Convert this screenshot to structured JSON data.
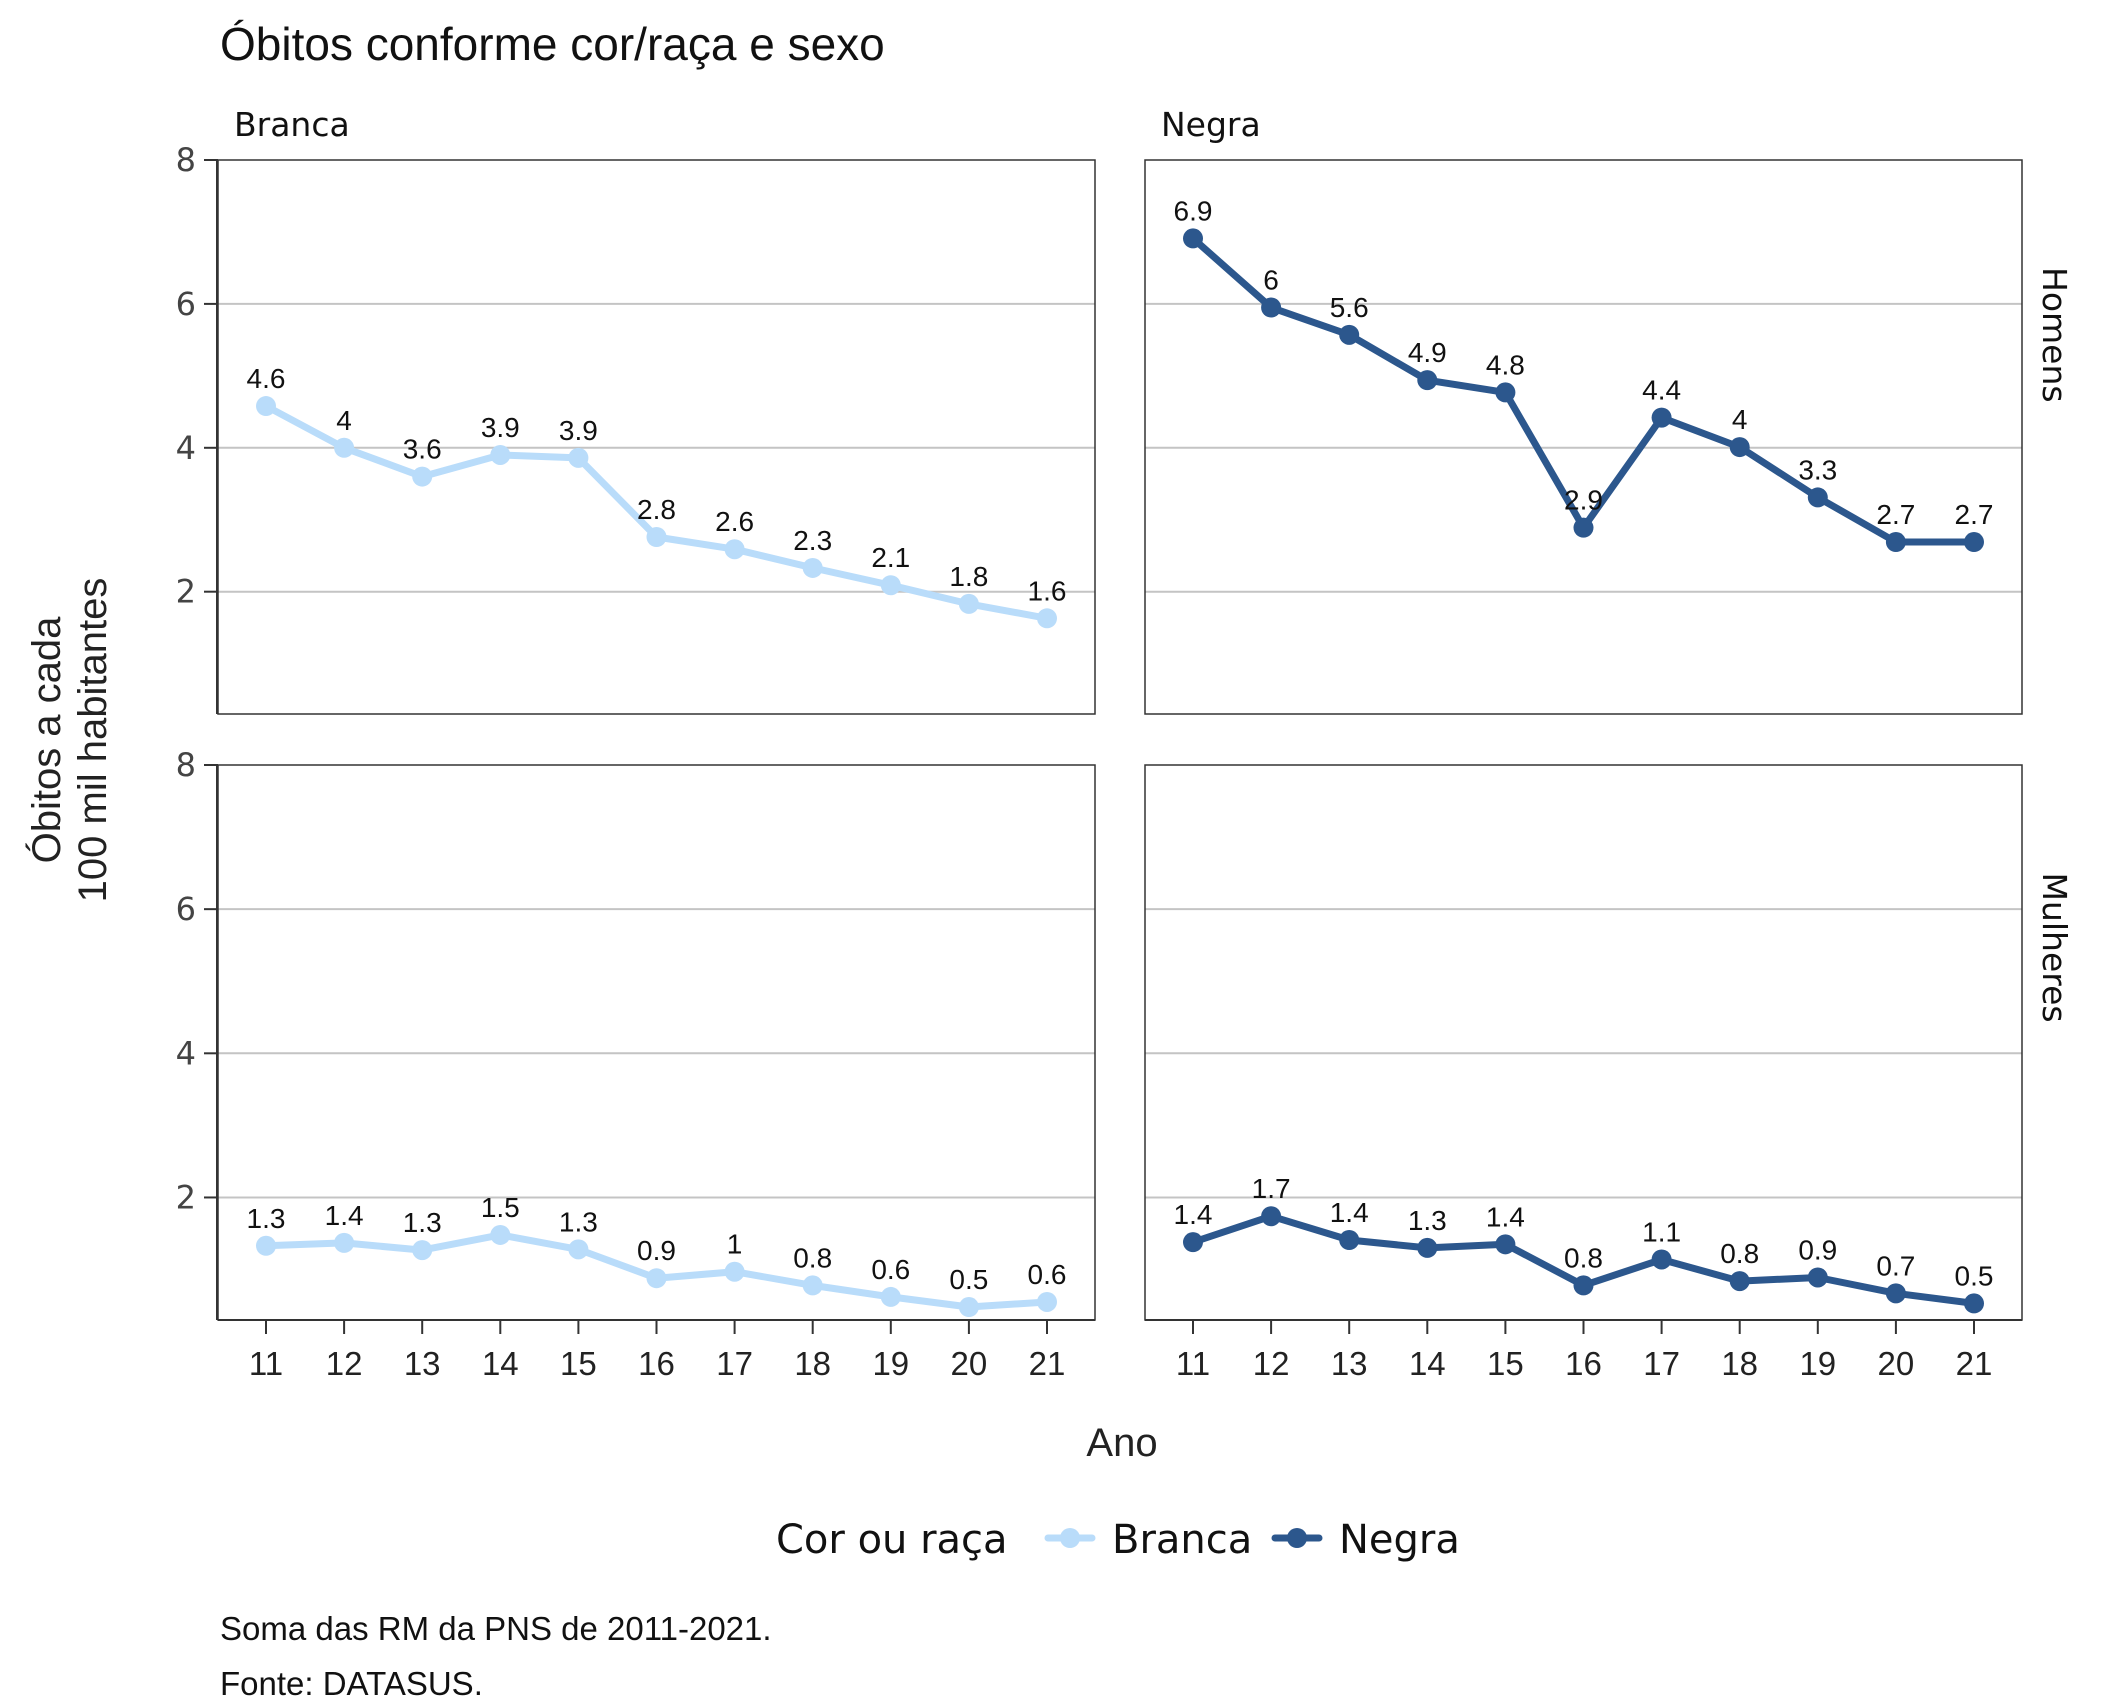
{
  "chart_data": {
    "type": "line",
    "title": "Óbitos conforme cor/raça e sexo",
    "xlabel": "Ano",
    "ylabel_lines": [
      "Óbitos a cada",
      "100 mil habitantes"
    ],
    "x": [
      "11",
      "12",
      "13",
      "14",
      "15",
      "16",
      "17",
      "18",
      "19",
      "20",
      "21"
    ],
    "yticks": [
      2,
      4,
      6,
      8
    ],
    "ylim": [
      0.3,
      8
    ],
    "columns": [
      "Branca",
      "Negra"
    ],
    "rows": [
      "Homens",
      "Mulheres"
    ],
    "grid": "horizontal",
    "legend": {
      "title": "Cor ou raça",
      "position": "bottom",
      "items": [
        {
          "name": "Branca",
          "color": "#b9dcfa"
        },
        {
          "name": "Negra",
          "color": "#2c578d"
        }
      ]
    },
    "panels": [
      {
        "col": "Branca",
        "row": "Homens",
        "color": "#b9dcfa",
        "values": [
          4.58,
          4.0,
          3.6,
          3.9,
          3.86,
          2.76,
          2.59,
          2.33,
          2.09,
          1.83,
          1.63
        ],
        "labels": [
          "4.6",
          "4",
          "3.6",
          "3.9",
          "3.9",
          "2.8",
          "2.6",
          "2.3",
          "2.1",
          "1.8",
          "1.6"
        ]
      },
      {
        "col": "Negra",
        "row": "Homens",
        "color": "#2c578d",
        "values": [
          6.91,
          5.95,
          5.57,
          4.94,
          4.77,
          2.89,
          4.42,
          4.01,
          3.31,
          2.69,
          2.69
        ],
        "labels": [
          "6.9",
          "6",
          "5.6",
          "4.9",
          "4.8",
          "2.9",
          "4.4",
          "4",
          "3.3",
          "2.7",
          "2.7"
        ]
      },
      {
        "col": "Branca",
        "row": "Mulheres",
        "color": "#b9dcfa",
        "values": [
          1.33,
          1.37,
          1.27,
          1.48,
          1.28,
          0.88,
          0.97,
          0.78,
          0.62,
          0.48,
          0.55
        ],
        "labels": [
          "1.3",
          "1.4",
          "1.3",
          "1.5",
          "1.3",
          "0.9",
          "1",
          "0.8",
          "0.6",
          "0.5",
          "0.6"
        ]
      },
      {
        "col": "Negra",
        "row": "Mulheres",
        "color": "#2c578d",
        "values": [
          1.38,
          1.74,
          1.41,
          1.3,
          1.35,
          0.78,
          1.14,
          0.84,
          0.89,
          0.67,
          0.53
        ],
        "labels": [
          "1.4",
          "1.7",
          "1.4",
          "1.3",
          "1.4",
          "0.8",
          "1.1",
          "0.8",
          "0.9",
          "0.7",
          "0.5"
        ]
      }
    ],
    "captions": [
      "Soma das RM da PNS de 2011-2021.",
      "Fonte: DATASUS."
    ]
  }
}
